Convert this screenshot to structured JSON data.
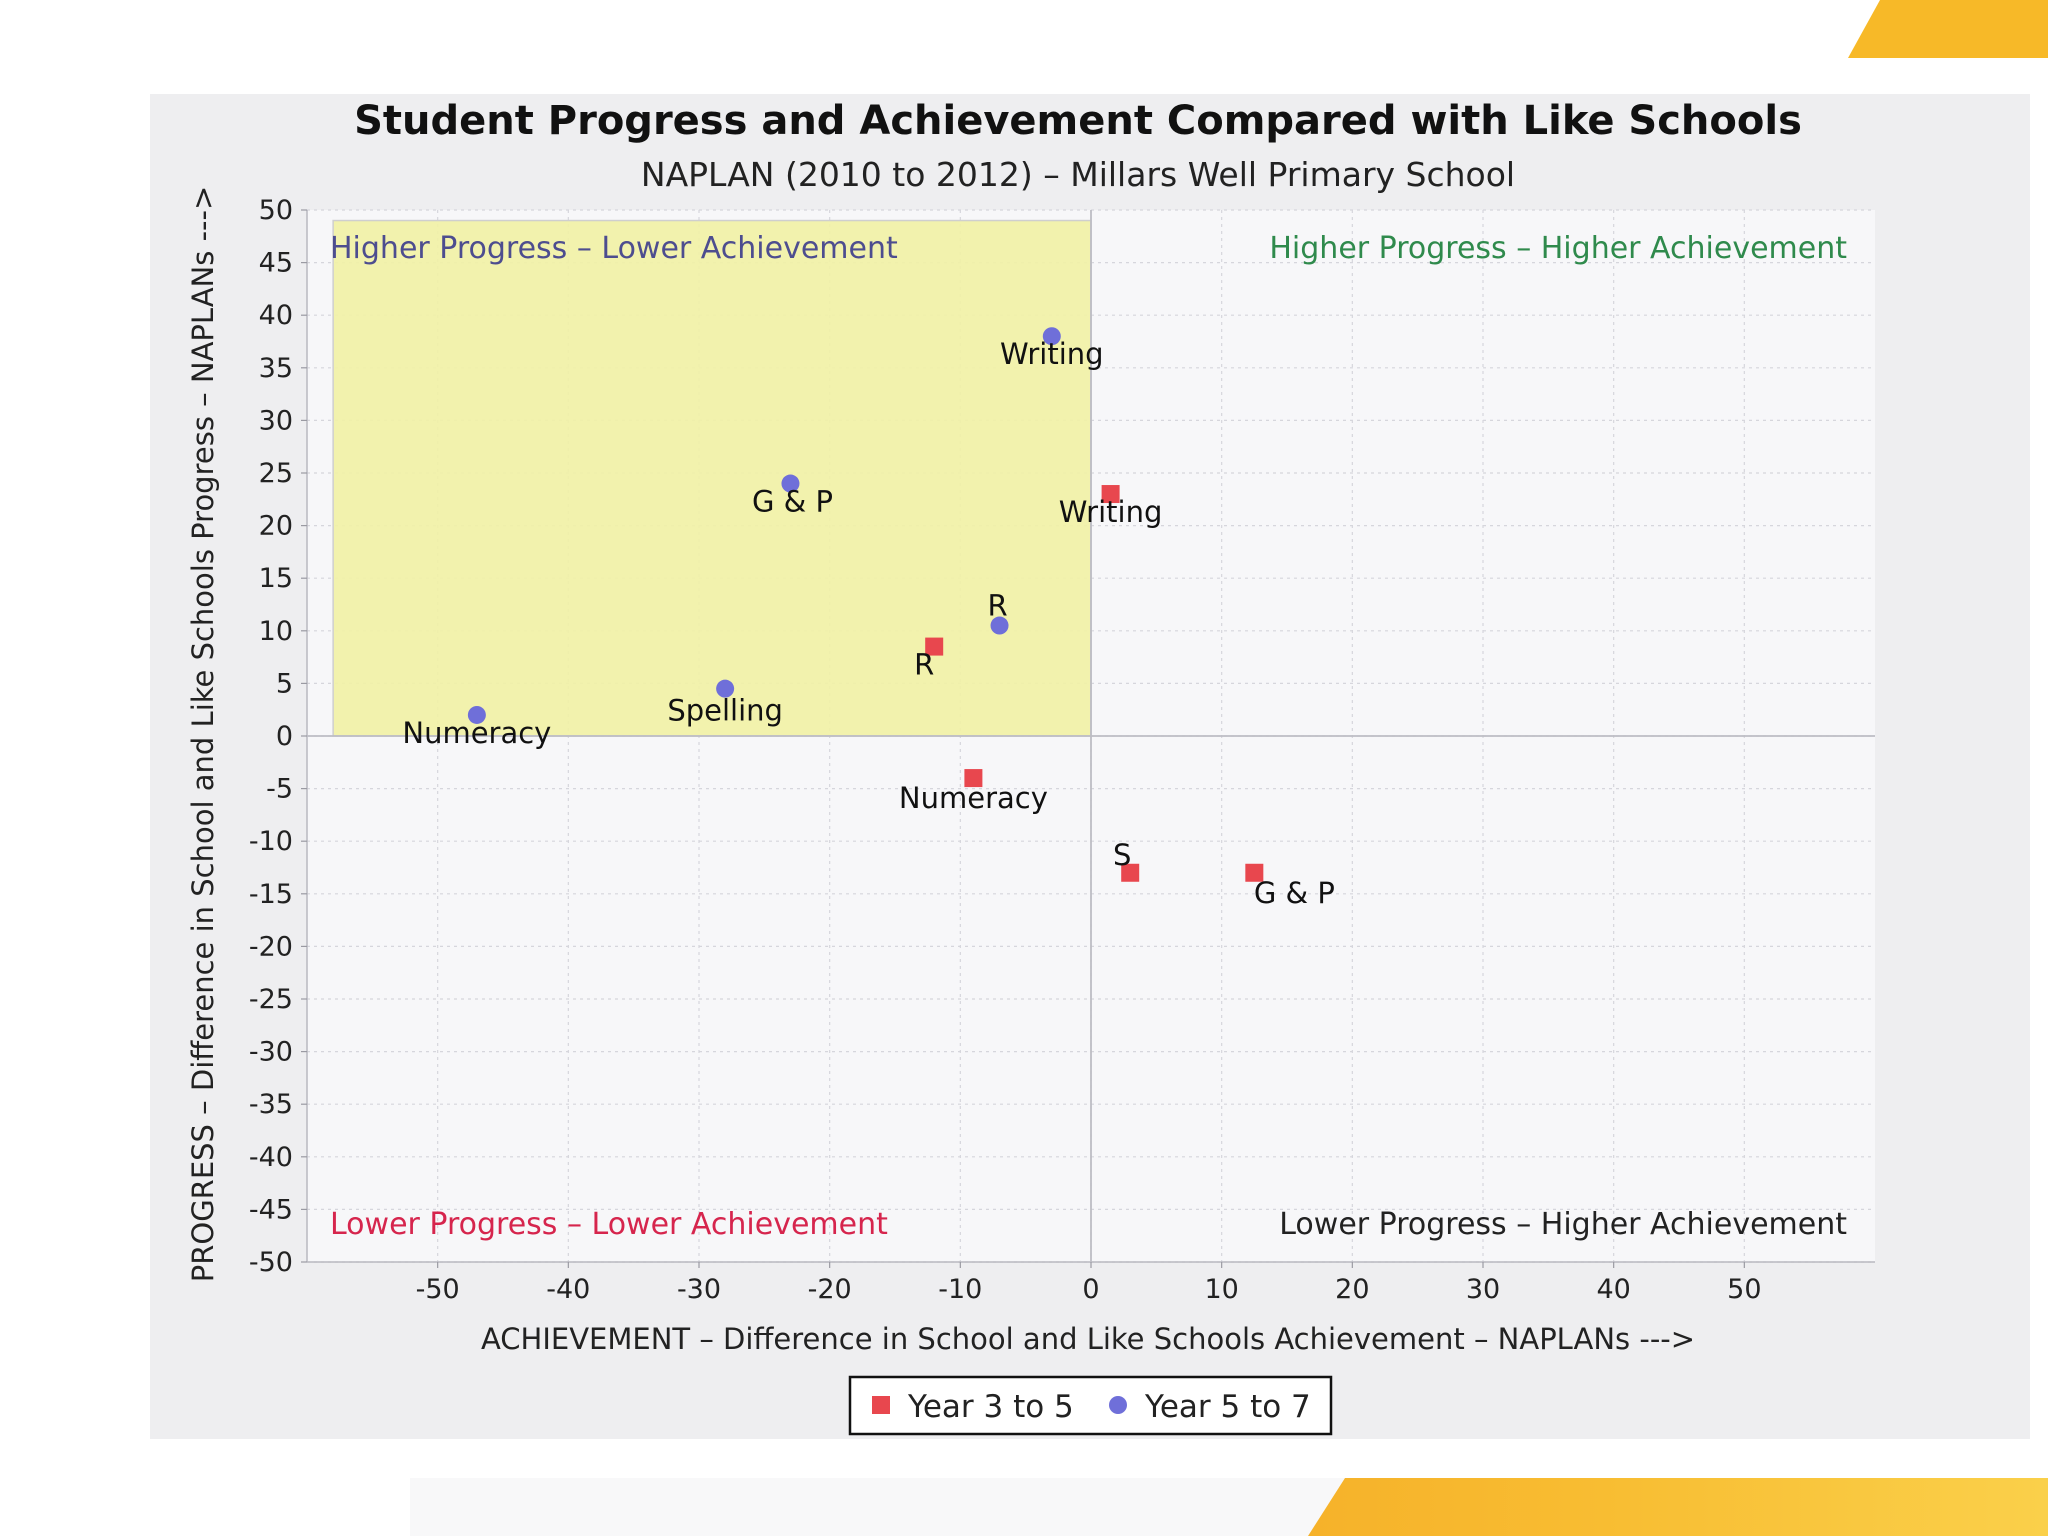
{
  "colors": {
    "series_a": "#e8474e",
    "series_b": "#6f6fd9",
    "highlight_fill": "#f1f1a6",
    "quad_top_left": "#4d4d8f",
    "quad_top_right": "#2f8a4c",
    "quad_bottom_left": "#d6254d",
    "quad_bottom_right": "#222222"
  },
  "chart_data": {
    "type": "scatter",
    "title": "Student Progress and Achievement Compared with Like Schools",
    "subtitle": "NAPLAN (2010 to 2012) – Millars Well Primary School",
    "xlabel": "ACHIEVEMENT – Difference in School and Like Schools Achievement – NAPLANs --->",
    "ylabel": "PROGRESS – Difference in School and Like Schools Progress – NAPLANs --->",
    "xlim": [
      -60,
      60
    ],
    "ylim": [
      -50,
      50
    ],
    "xticks": [
      -50,
      -40,
      -30,
      -20,
      -10,
      0,
      10,
      20,
      30,
      40,
      50
    ],
    "yticks": [
      50,
      45,
      40,
      35,
      30,
      25,
      20,
      15,
      10,
      5,
      0,
      -5,
      -10,
      -15,
      -20,
      -25,
      -30,
      -35,
      -40,
      -45,
      -50
    ],
    "grid": true,
    "highlight_region": {
      "x": [
        -58,
        0
      ],
      "y": [
        0,
        49
      ]
    },
    "quadrant_labels": {
      "top_left": "Higher Progress – Lower Achievement",
      "top_right": "Higher Progress – Higher Achievement",
      "bottom_left": "Lower Progress – Lower Achievement",
      "bottom_right": "Lower Progress – Higher Achievement"
    },
    "series": [
      {
        "name": "Year 3 to 5",
        "marker": "square",
        "points": [
          {
            "label": "Writing",
            "x": 1.5,
            "y": 23
          },
          {
            "label": "R",
            "x": -12,
            "y": 8.5
          },
          {
            "label": "Numeracy",
            "x": -9,
            "y": -4
          },
          {
            "label": "S",
            "x": 3,
            "y": -13
          },
          {
            "label": "G & P",
            "x": 12.5,
            "y": -13
          }
        ]
      },
      {
        "name": "Year 5 to 7",
        "marker": "circle",
        "points": [
          {
            "label": "Writing",
            "x": -3,
            "y": 38
          },
          {
            "label": "G & P",
            "x": -23,
            "y": 24
          },
          {
            "label": "R",
            "x": -7,
            "y": 10.5
          },
          {
            "label": "Spelling",
            "x": -28,
            "y": 4.5
          },
          {
            "label": "Numeracy",
            "x": -47,
            "y": 2
          }
        ]
      }
    ],
    "legend_position": "bottom-center"
  }
}
